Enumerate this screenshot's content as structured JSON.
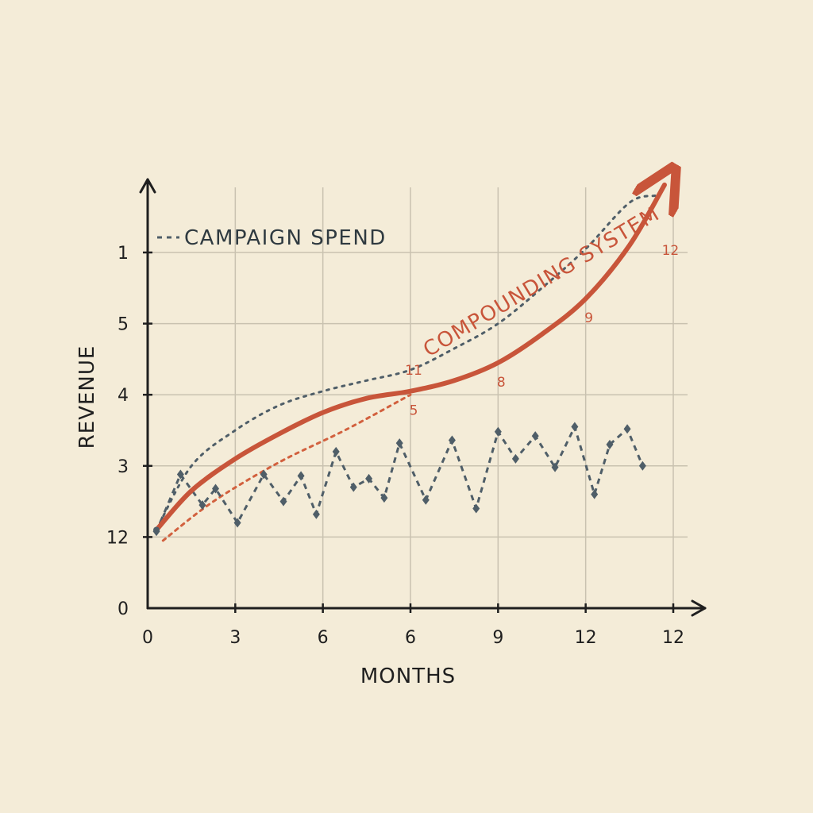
{
  "colors": {
    "paper": "#f4ecd8",
    "ink": "#1f1f1f",
    "grid": "#c9c2b0",
    "compound": "#c8553a",
    "compound_guide": "#d2613f",
    "spend": "#4f5e68"
  },
  "chart_data": {
    "type": "line",
    "title": "",
    "xlabel": "MONTHS",
    "ylabel": "REVENUE",
    "x_tick_labels": [
      "0",
      "3",
      "6",
      "6",
      "9",
      "12",
      "12"
    ],
    "x_tick_values": [
      0,
      2,
      4,
      6,
      8,
      10,
      12
    ],
    "y_tick_labels": [
      "0",
      "12",
      "3",
      "4",
      "5",
      "1"
    ],
    "y_tick_values": [
      0,
      1,
      2,
      3,
      4,
      5
    ],
    "xlim": [
      0,
      12.5
    ],
    "ylim": [
      0,
      5.6
    ],
    "grid": true,
    "legend": {
      "position": "top-left",
      "label": "CAMPAIGN SPEND"
    },
    "series": [
      {
        "name": "COMPOUNDING SYSTEM",
        "style": "solid",
        "x": [
          0.2,
          1,
          2,
          3,
          4,
          5,
          6,
          7,
          8,
          9,
          10,
          11,
          11.8
        ],
        "y": [
          1.1,
          1.65,
          2.1,
          2.45,
          2.75,
          2.95,
          3.05,
          3.2,
          3.45,
          3.85,
          4.35,
          5.1,
          5.95
        ],
        "point_labels": [
          {
            "x": 6,
            "y": 3.05,
            "label": "5"
          },
          {
            "x": 8,
            "y": 3.45,
            "label": "8"
          },
          {
            "x": 10,
            "y": 4.35,
            "label": "9"
          },
          {
            "x": 11.5,
            "y": 5.3,
            "label": "12"
          },
          {
            "x": 6,
            "y": 3.35,
            "label": "11"
          }
        ]
      },
      {
        "name": "",
        "style": "dotted-guide",
        "x": [
          0.35,
          1.5,
          3,
          4.5,
          6
        ],
        "y": [
          0.95,
          1.5,
          2.05,
          2.5,
          3.0
        ]
      },
      {
        "name": "",
        "style": "dotted-upper",
        "x": [
          0.2,
          1,
          2,
          3,
          4,
          5,
          6,
          7,
          8,
          9,
          10,
          11,
          11.6
        ],
        "y": [
          1.1,
          2.0,
          2.5,
          2.85,
          3.05,
          3.2,
          3.35,
          3.65,
          4.0,
          4.5,
          5.05,
          5.7,
          5.8
        ]
      },
      {
        "name": "CAMPAIGN SPEND",
        "style": "dashed-markers",
        "x": [
          0.2,
          0.75,
          1.25,
          1.55,
          2.05,
          2.65,
          3.1,
          3.5,
          3.85,
          4.3,
          4.7,
          5.05,
          5.4,
          5.75,
          6.35,
          6.95,
          7.5,
          8.0,
          8.4,
          8.85,
          9.3,
          9.75,
          10.2,
          10.55,
          10.95,
          11.3
        ],
        "y": [
          1.08,
          1.88,
          1.45,
          1.68,
          1.2,
          1.88,
          1.5,
          1.86,
          1.32,
          2.2,
          1.7,
          1.82,
          1.55,
          2.32,
          1.52,
          2.36,
          1.4,
          2.48,
          2.1,
          2.42,
          1.98,
          2.55,
          1.6,
          2.3,
          2.52,
          2.0
        ]
      }
    ]
  }
}
